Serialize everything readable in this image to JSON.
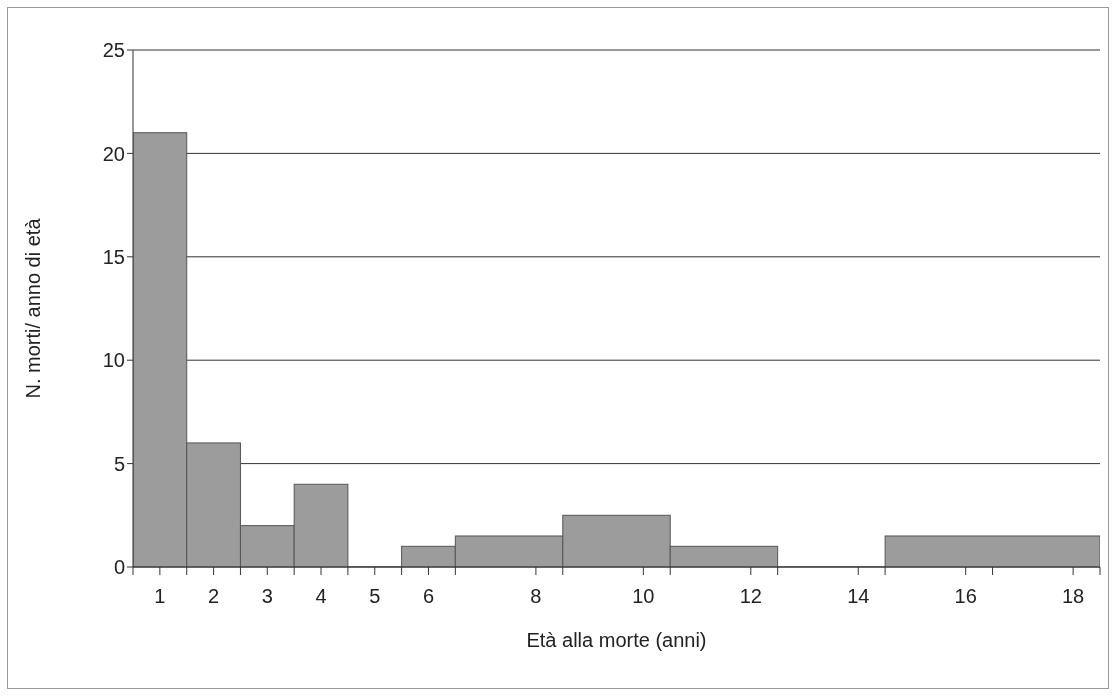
{
  "chart_data": {
    "type": "histogram",
    "xlabel": "Età alla morte (anni)",
    "ylabel": "N. morti/ anno di età",
    "bins": [
      0.5,
      1.5,
      2.5,
      3.5,
      4.5,
      5.5,
      6.5,
      8.5,
      10.5,
      12.5,
      14.5,
      18.5
    ],
    "values": [
      21,
      6,
      2,
      4,
      0,
      1,
      1.5,
      2.5,
      1,
      0,
      1.5
    ],
    "color": "#9c9c9c",
    "xlim": [
      0.5,
      18.5
    ],
    "xticks": [
      {
        "value": 0.5,
        "label": null
      },
      1,
      {
        "value": 1.5,
        "label": null
      },
      2,
      {
        "value": 2.5,
        "label": null
      },
      3,
      {
        "value": 3.5,
        "label": null
      },
      4,
      {
        "value": 4.5,
        "label": null
      },
      5,
      {
        "value": 5.5,
        "label": null
      },
      6,
      {
        "value": 6.5,
        "label": null
      },
      8,
      {
        "value": 8.5,
        "label": null
      },
      10,
      {
        "value": 10.5,
        "label": null
      },
      12,
      {
        "value": 12.5,
        "label": null
      },
      14,
      {
        "value": 14.5,
        "label": null
      },
      16,
      {
        "value": 16.5,
        "label": null
      },
      18,
      {
        "value": 18.5,
        "label": null
      }
    ],
    "ylim": [
      0,
      25
    ],
    "yticks": [
      0,
      5,
      10,
      15,
      20,
      25
    ],
    "grid": "y"
  }
}
